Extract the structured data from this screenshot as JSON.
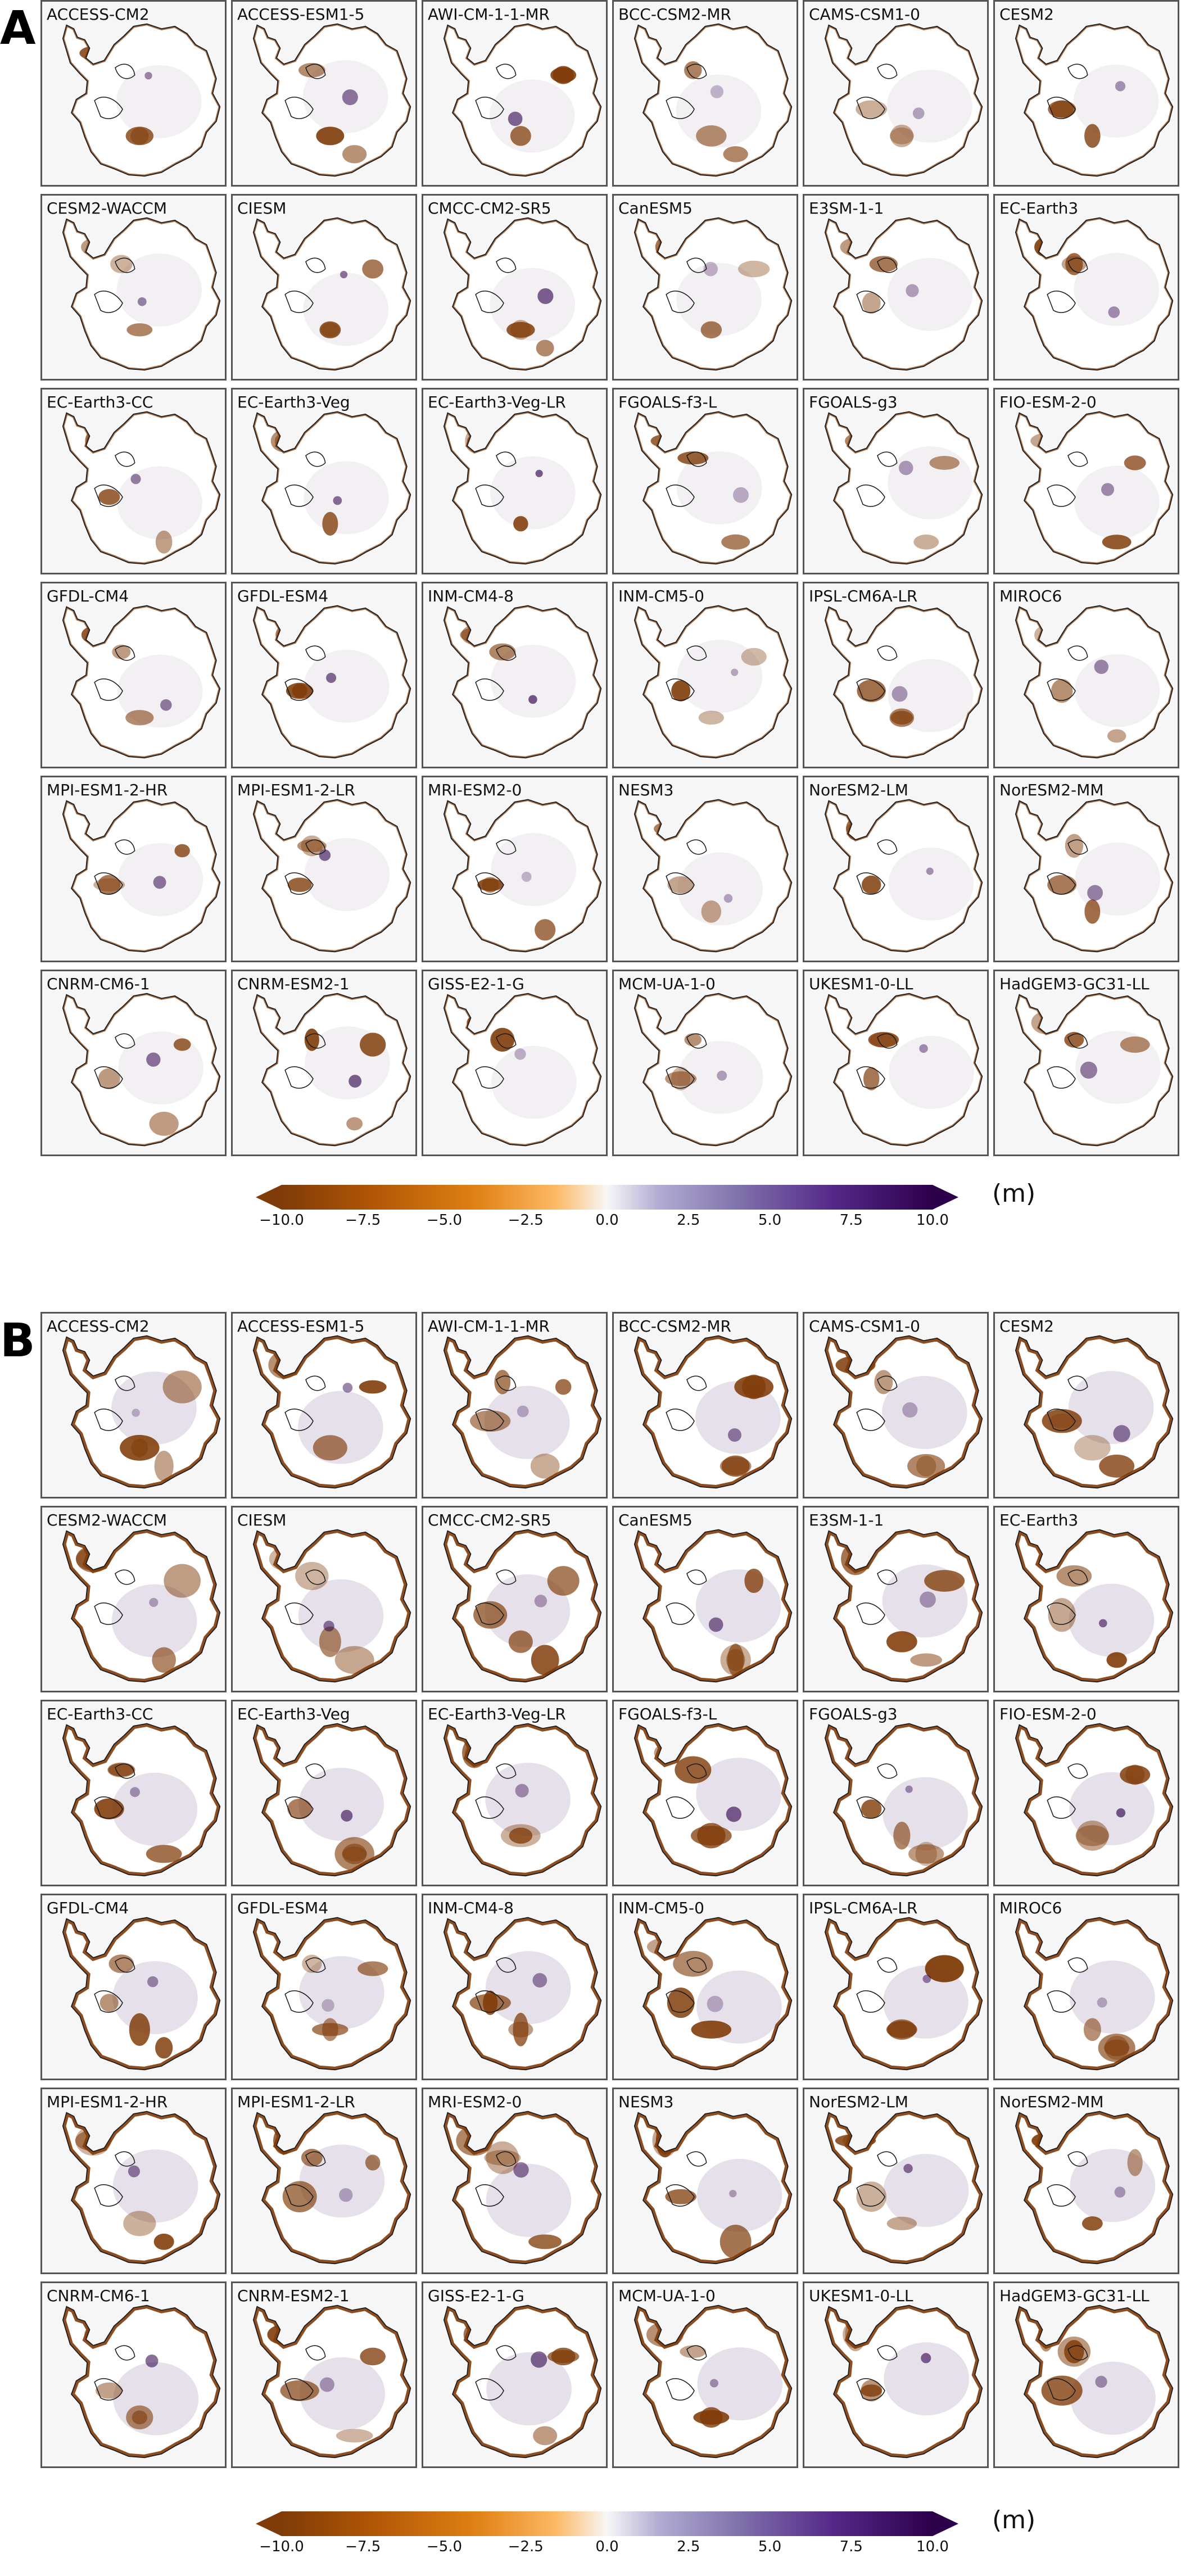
{
  "panels": [
    {
      "letter": "A",
      "models": [
        "ACCESS-CM2",
        "ACCESS-ESM1-5",
        "AWI-CM-1-1-MR",
        "BCC-CSM2-MR",
        "CAMS-CSM1-0",
        "CESM2",
        "CESM2-WACCM",
        "CIESM",
        "CMCC-CM2-SR5",
        "CanESM5",
        "E3SM-1-1",
        "EC-Earth3",
        "EC-Earth3-CC",
        "EC-Earth3-Veg",
        "EC-Earth3-Veg-LR",
        "FGOALS-f3-L",
        "FGOALS-g3",
        "FIO-ESM-2-0",
        "GFDL-CM4",
        "GFDL-ESM4",
        "INM-CM4-8",
        "INM-CM5-0",
        "IPSL-CM6A-LR",
        "MIROC6",
        "MPI-ESM1-2-HR",
        "MPI-ESM1-2-LR",
        "MRI-ESM2-0",
        "NESM3",
        "NorESM2-LM",
        "NorESM2-MM",
        "CNRM-CM6-1",
        "CNRM-ESM2-1",
        "GISS-E2-1-G",
        "MCM-UA-1-0",
        "UKESM1-0-LL",
        "HadGEM3-GC31-LL"
      ],
      "colorbar": {
        "ticks": [
          "−10.0",
          "−7.5",
          "−5.0",
          "−2.5",
          "0.0",
          "2.5",
          "5.0",
          "7.5",
          "10.0"
        ],
        "unit": "(m)"
      }
    },
    {
      "letter": "B",
      "models": [
        "ACCESS-CM2",
        "ACCESS-ESM1-5",
        "AWI-CM-1-1-MR",
        "BCC-CSM2-MR",
        "CAMS-CSM1-0",
        "CESM2",
        "CESM2-WACCM",
        "CIESM",
        "CMCC-CM2-SR5",
        "CanESM5",
        "E3SM-1-1",
        "EC-Earth3",
        "EC-Earth3-CC",
        "EC-Earth3-Veg",
        "EC-Earth3-Veg-LR",
        "FGOALS-f3-L",
        "FGOALS-g3",
        "FIO-ESM-2-0",
        "GFDL-CM4",
        "GFDL-ESM4",
        "INM-CM4-8",
        "INM-CM5-0",
        "IPSL-CM6A-LR",
        "MIROC6",
        "MPI-ESM1-2-HR",
        "MPI-ESM1-2-LR",
        "MRI-ESM2-0",
        "NESM3",
        "NorESM2-LM",
        "NorESM2-MM",
        "CNRM-CM6-1",
        "CNRM-ESM2-1",
        "GISS-E2-1-G",
        "MCM-UA-1-0",
        "UKESM1-0-LL",
        "HadGEM3-GC31-LL"
      ],
      "colorbar": {
        "ticks": [
          "−10.0",
          "−7.5",
          "−5.0",
          "−2.5",
          "0.0",
          "2.5",
          "5.0",
          "7.5",
          "10.0"
        ],
        "unit": "(m)"
      }
    }
  ],
  "chart_data": {
    "type": "heatmap",
    "description_type": "small-multiple maps",
    "colormap": {
      "name": "PuOr",
      "min": -10.0,
      "max": 10.0,
      "extend": "both",
      "neg_color": "#7f3b08",
      "mid_color": "#f7f7f7",
      "pos_color": "#2d004b"
    },
    "colorbar_ticks": [
      -10.0,
      -7.5,
      -5.0,
      -2.5,
      0.0,
      2.5,
      5.0,
      7.5,
      10.0
    ],
    "colorbar_unit": "(m)",
    "grid": {
      "rows": 6,
      "cols": 6
    }
  }
}
